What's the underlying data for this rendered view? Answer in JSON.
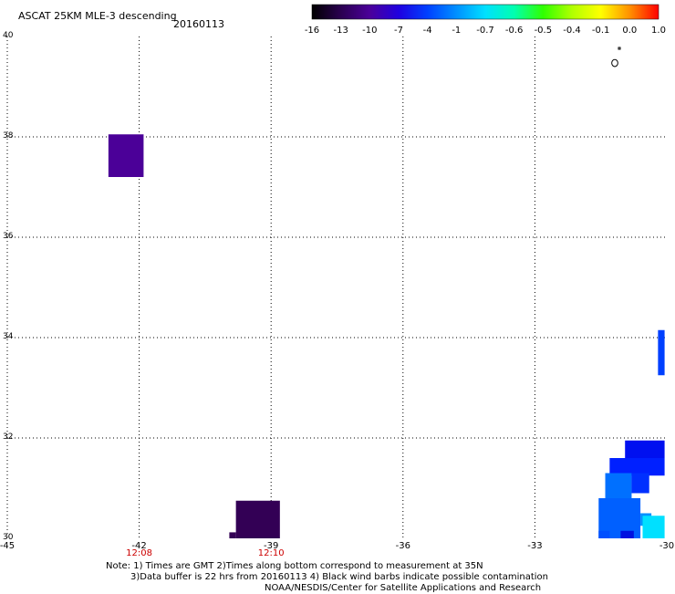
{
  "header": {
    "title": "ASCAT 25KM MLE-3 descending",
    "date": "20160113"
  },
  "colorbar": {
    "labels": [
      "-16",
      "-13",
      "-10",
      "-7",
      "-4",
      "-1",
      "-0.7",
      "-0.6",
      "-0.5",
      "-0.4",
      "-0.1",
      "0.0",
      "1.0"
    ],
    "colors": [
      "#000000",
      "#2a0050",
      "#4b009a",
      "#2000e0",
      "#0040ff",
      "#0090ff",
      "#00e0ff",
      "#00ffb0",
      "#30ff00",
      "#b0ff00",
      "#ffff00",
      "#ff9000",
      "#ff0000"
    ]
  },
  "axes": {
    "x_ticks": [
      "-45",
      "-42",
      "-39",
      "-36",
      "-33",
      "-30"
    ],
    "y_ticks": [
      "30",
      "32",
      "34",
      "36",
      "38",
      "40"
    ],
    "time_labels": [
      {
        "lon": -42,
        "text": "12:08"
      },
      {
        "lon": -39,
        "text": "12:10"
      }
    ],
    "time_color": "#cc0000",
    "lon_range": [
      -45,
      -30
    ],
    "lat_range": [
      30,
      40
    ]
  },
  "cells": [
    {
      "lon0": -42.7,
      "lon1": -41.9,
      "lat0": 37.2,
      "lat1": 38.05,
      "color": "#4b0098"
    },
    {
      "lon0": -39.8,
      "lon1": -38.8,
      "lat0": 30.0,
      "lat1": 30.75,
      "color": "#330055"
    },
    {
      "lon0": -39.95,
      "lon1": -39.8,
      "lat0": 30.0,
      "lat1": 30.12,
      "color": "#330055"
    },
    {
      "lon0": -30.2,
      "lon1": -30.05,
      "lat0": 33.25,
      "lat1": 34.15,
      "color": "#0040ff"
    },
    {
      "lon0": -30.95,
      "lon1": -30.05,
      "lat0": 31.6,
      "lat1": 31.95,
      "color": "#0010f0"
    },
    {
      "lon0": -31.3,
      "lon1": -30.05,
      "lat0": 31.25,
      "lat1": 31.6,
      "color": "#0020ff"
    },
    {
      "lon0": -31.4,
      "lon1": -30.8,
      "lat0": 30.8,
      "lat1": 31.3,
      "color": "#0070ff"
    },
    {
      "lon0": -30.8,
      "lon1": -30.4,
      "lat0": 30.9,
      "lat1": 31.3,
      "color": "#0030ff"
    },
    {
      "lon0": -31.55,
      "lon1": -30.6,
      "lat0": 30.0,
      "lat1": 30.8,
      "color": "#0060ff"
    },
    {
      "lon0": -30.6,
      "lon1": -30.35,
      "lat0": 30.25,
      "lat1": 30.5,
      "color": "#0090ff"
    },
    {
      "lon0": -30.55,
      "lon1": -30.05,
      "lat0": 30.0,
      "lat1": 30.45,
      "color": "#00e0ff"
    },
    {
      "lon0": -31.55,
      "lon1": -31.3,
      "lat0": 30.0,
      "lat1": 30.15,
      "color": "#0050ff"
    },
    {
      "lon0": -31.05,
      "lon1": -30.75,
      "lat0": 30.0,
      "lat1": 30.15,
      "color": "#0010e0"
    }
  ],
  "notes": {
    "line1": "Note: 1) Times are GMT 2)Times along bottom correspond to measurement at 35N",
    "line2": "3)Data buffer is 22 hrs from 20160113 4) Black wind barbs indicate possible contamination",
    "line3": "NOAA/NESDIS/Center for Satellite Applications and Research"
  }
}
